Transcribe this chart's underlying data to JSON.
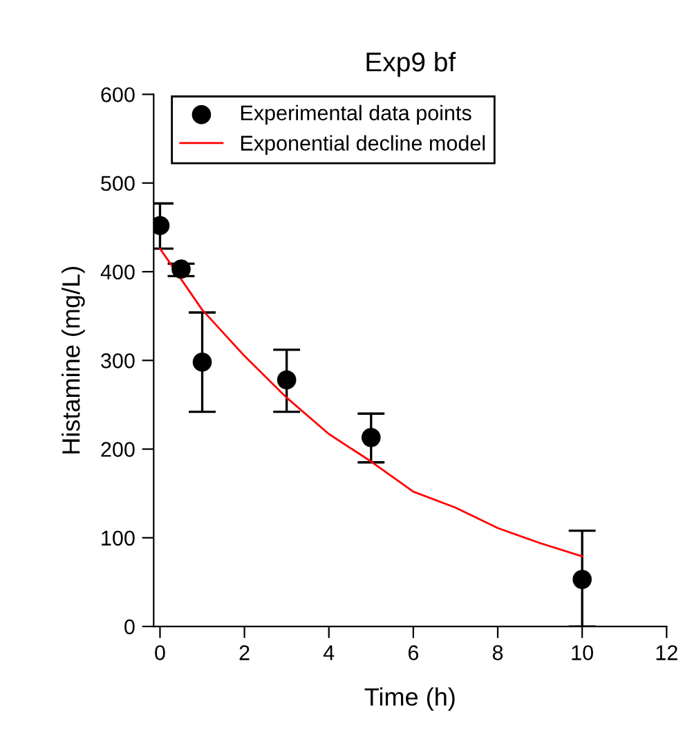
{
  "chart_data": {
    "type": "scatter",
    "title": "Exp9 bf",
    "xlabel": "Time (h)",
    "ylabel": "Histamine (mg/L)",
    "xlim": [
      -0.15,
      12
    ],
    "xticks": [
      0,
      2,
      4,
      6,
      8,
      10,
      12
    ],
    "ylim": [
      0,
      600
    ],
    "yticks": [
      0,
      100,
      200,
      300,
      400,
      500,
      600
    ],
    "grid": false,
    "legend": "top",
    "series": [
      {
        "name": "Experimental data points",
        "color": "#000000",
        "marker": "circle",
        "x": [
          0,
          0.5,
          1,
          3,
          5,
          10
        ],
        "values": [
          452,
          403,
          298,
          278,
          213,
          53
        ],
        "errors": [
          [
            426,
            477
          ],
          [
            395,
            409
          ],
          [
            242,
            354
          ],
          [
            242,
            312
          ],
          [
            185,
            240
          ],
          [
            0,
            108
          ]
        ]
      },
      {
        "name": "Exponential decline model",
        "type": "line",
        "color": "#ff0000",
        "marker": "none",
        "line_style": "solid",
        "x": [
          0,
          1,
          2,
          3,
          4,
          5,
          6,
          7,
          8,
          9,
          10
        ],
        "values": [
          426,
          357,
          305,
          258,
          217,
          186,
          152,
          134,
          111,
          94,
          79
        ]
      }
    ]
  }
}
